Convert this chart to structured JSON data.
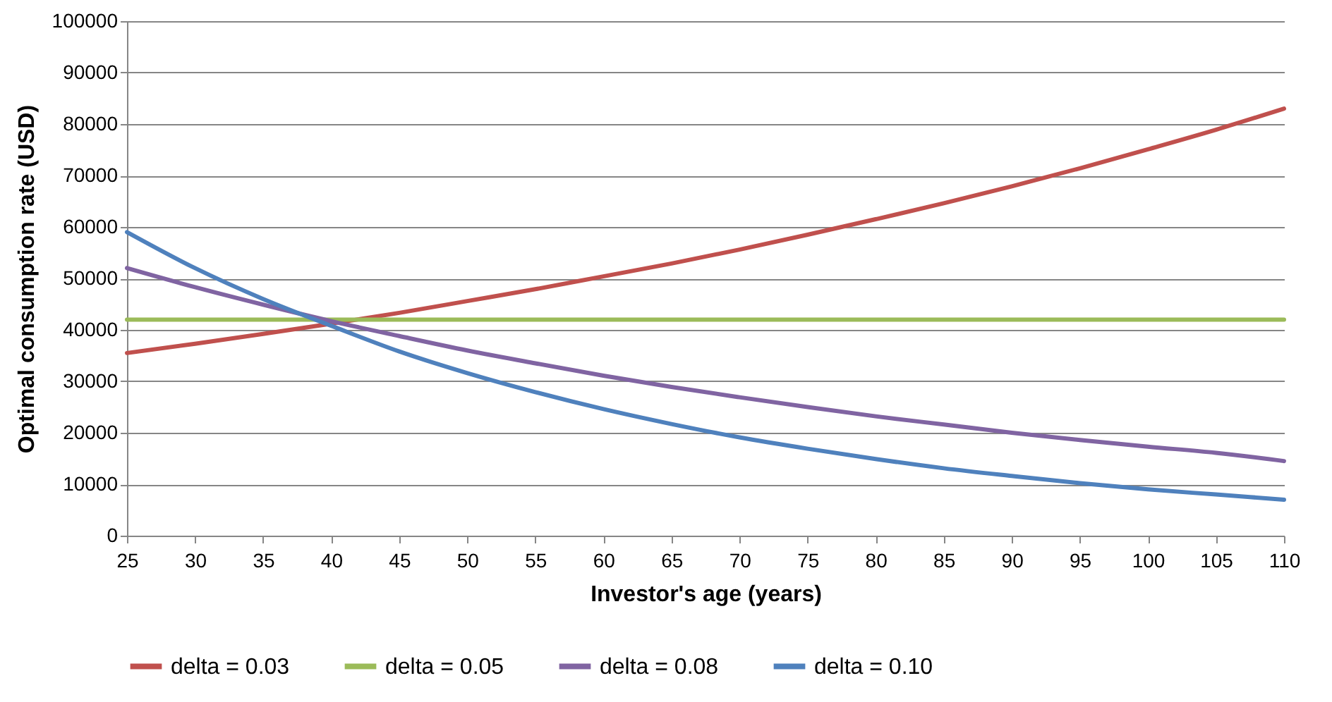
{
  "chart_data": {
    "type": "line",
    "xlabel": "Investor's age  (years)",
    "ylabel": "Optimal consumption rate (USD)",
    "x": [
      25,
      30,
      35,
      40,
      45,
      50,
      55,
      60,
      65,
      70,
      75,
      80,
      85,
      90,
      95,
      100,
      105,
      110
    ],
    "series": [
      {
        "name": "delta = 0.03",
        "color": "#c0504d",
        "values": [
          35500,
          37300,
          39200,
          41200,
          43300,
          45600,
          47900,
          50400,
          52900,
          55600,
          58500,
          61500,
          64600,
          67900,
          71400,
          75100,
          78900,
          83000
        ]
      },
      {
        "name": "delta = 0.05",
        "color": "#9bbb59",
        "values": [
          42000,
          42000,
          42000,
          42000,
          42000,
          42000,
          42000,
          42000,
          42000,
          42000,
          42000,
          42000,
          42000,
          42000,
          42000,
          42000,
          42000,
          42000
        ]
      },
      {
        "name": "delta = 0.08",
        "color": "#8064a2",
        "values": [
          52000,
          48300,
          44900,
          41700,
          38800,
          36000,
          33500,
          31100,
          28900,
          26900,
          25000,
          23200,
          21600,
          20000,
          18600,
          17300,
          16100,
          14500
        ]
      },
      {
        "name": "delta = 0.10",
        "color": "#4f81bd",
        "values": [
          59000,
          52000,
          46000,
          40800,
          35800,
          31600,
          27900,
          24600,
          21700,
          19100,
          16900,
          14900,
          13100,
          11600,
          10200,
          9000,
          8000,
          7000
        ]
      }
    ],
    "xlim": [
      25,
      110
    ],
    "xticks": [
      25,
      30,
      35,
      40,
      45,
      50,
      55,
      60,
      65,
      70,
      75,
      80,
      85,
      90,
      95,
      100,
      105,
      110
    ],
    "ylim": [
      0,
      100000
    ],
    "yticks": [
      0,
      10000,
      20000,
      30000,
      40000,
      50000,
      60000,
      70000,
      80000,
      90000,
      100000
    ],
    "grid": "y",
    "legend": "bottom",
    "marker": "none",
    "line_style": "solid"
  }
}
